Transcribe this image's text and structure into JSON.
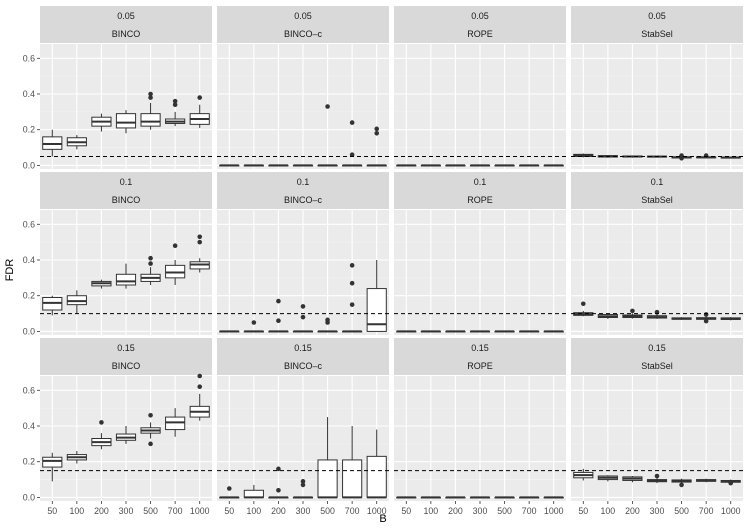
{
  "chart_data": {
    "type": "boxplot",
    "xlabel": "B",
    "ylabel": "FDR",
    "x_ticks": [
      "50",
      "100",
      "200",
      "300",
      "500",
      "700",
      "1000"
    ],
    "y_ticks": [
      "0.0",
      "0.2",
      "0.4",
      "0.6"
    ],
    "ylim": [
      -0.02,
      0.68
    ],
    "columns": [
      "BINCO",
      "BINCO–c",
      "ROPE",
      "StabSel"
    ],
    "rows": [
      {
        "threshold_label": "0.05",
        "threshold": 0.05,
        "panels": [
          {
            "method": "BINCO",
            "boxes": [
              {
                "lo": 0.05,
                "q1": 0.09,
                "med": 0.12,
                "q3": 0.16,
                "hi": 0.2,
                "out": []
              },
              {
                "lo": 0.09,
                "q1": 0.11,
                "med": 0.13,
                "q3": 0.155,
                "hi": 0.17,
                "out": []
              },
              {
                "lo": 0.19,
                "q1": 0.22,
                "med": 0.245,
                "q3": 0.27,
                "hi": 0.29,
                "out": []
              },
              {
                "lo": 0.18,
                "q1": 0.21,
                "med": 0.24,
                "q3": 0.29,
                "hi": 0.31,
                "out": []
              },
              {
                "lo": 0.2,
                "q1": 0.22,
                "med": 0.245,
                "q3": 0.29,
                "hi": 0.35,
                "out": [
                  0.38,
                  0.4
                ]
              },
              {
                "lo": 0.22,
                "q1": 0.235,
                "med": 0.245,
                "q3": 0.26,
                "hi": 0.3,
                "out": [
                  0.34,
                  0.36
                ]
              },
              {
                "lo": 0.21,
                "q1": 0.23,
                "med": 0.26,
                "q3": 0.29,
                "hi": 0.34,
                "out": [
                  0.38
                ]
              }
            ]
          },
          {
            "method": "BINCO–c",
            "boxes": [
              {
                "lo": 0,
                "q1": 0,
                "med": 0,
                "q3": 0,
                "hi": 0,
                "out": []
              },
              {
                "lo": 0,
                "q1": 0,
                "med": 0,
                "q3": 0,
                "hi": 0,
                "out": []
              },
              {
                "lo": 0,
                "q1": 0,
                "med": 0,
                "q3": 0,
                "hi": 0,
                "out": []
              },
              {
                "lo": 0,
                "q1": 0,
                "med": 0,
                "q3": 0,
                "hi": 0,
                "out": []
              },
              {
                "lo": 0,
                "q1": 0,
                "med": 0,
                "q3": 0,
                "hi": 0,
                "out": [
                  0.33
                ]
              },
              {
                "lo": 0,
                "q1": 0,
                "med": 0,
                "q3": 0,
                "hi": 0,
                "out": [
                  0.06,
                  0.24
                ]
              },
              {
                "lo": 0,
                "q1": 0,
                "med": 0,
                "q3": 0,
                "hi": 0,
                "out": [
                  0.18,
                  0.205
                ]
              }
            ]
          },
          {
            "method": "ROPE",
            "boxes": [
              {
                "lo": 0,
                "q1": 0,
                "med": 0,
                "q3": 0,
                "hi": 0,
                "out": []
              },
              {
                "lo": 0,
                "q1": 0,
                "med": 0,
                "q3": 0,
                "hi": 0,
                "out": []
              },
              {
                "lo": 0,
                "q1": 0,
                "med": 0,
                "q3": 0,
                "hi": 0,
                "out": []
              },
              {
                "lo": 0,
                "q1": 0,
                "med": 0,
                "q3": 0,
                "hi": 0,
                "out": []
              },
              {
                "lo": 0,
                "q1": 0,
                "med": 0,
                "q3": 0,
                "hi": 0,
                "out": []
              },
              {
                "lo": 0,
                "q1": 0,
                "med": 0,
                "q3": 0,
                "hi": 0,
                "out": []
              },
              {
                "lo": 0,
                "q1": 0,
                "med": 0,
                "q3": 0,
                "hi": 0,
                "out": []
              }
            ]
          },
          {
            "method": "StabSel",
            "boxes": [
              {
                "lo": 0.045,
                "q1": 0.05,
                "med": 0.057,
                "q3": 0.062,
                "hi": 0.067,
                "out": []
              },
              {
                "lo": 0.043,
                "q1": 0.047,
                "med": 0.051,
                "q3": 0.055,
                "hi": 0.058,
                "out": []
              },
              {
                "lo": 0.043,
                "q1": 0.047,
                "med": 0.05,
                "q3": 0.053,
                "hi": 0.056,
                "out": []
              },
              {
                "lo": 0.044,
                "q1": 0.047,
                "med": 0.049,
                "q3": 0.052,
                "hi": 0.054,
                "out": []
              },
              {
                "lo": 0.037,
                "q1": 0.042,
                "med": 0.045,
                "q3": 0.048,
                "hi": 0.052,
                "out": [
                  0.04,
                  0.055
                ]
              },
              {
                "lo": 0.04,
                "q1": 0.043,
                "med": 0.045,
                "q3": 0.048,
                "hi": 0.05,
                "out": [
                  0.055
                ]
              },
              {
                "lo": 0.04,
                "q1": 0.042,
                "med": 0.044,
                "q3": 0.047,
                "hi": 0.049,
                "out": []
              }
            ]
          }
        ]
      },
      {
        "threshold_label": "0.1",
        "threshold": 0.1,
        "panels": [
          {
            "method": "BINCO",
            "boxes": [
              {
                "lo": 0.09,
                "q1": 0.12,
                "med": 0.16,
                "q3": 0.19,
                "hi": 0.2,
                "out": []
              },
              {
                "lo": 0.1,
                "q1": 0.15,
                "med": 0.17,
                "q3": 0.2,
                "hi": 0.23,
                "out": []
              },
              {
                "lo": 0.24,
                "q1": 0.255,
                "med": 0.27,
                "q3": 0.28,
                "hi": 0.29,
                "out": []
              },
              {
                "lo": 0.24,
                "q1": 0.26,
                "med": 0.28,
                "q3": 0.32,
                "hi": 0.38,
                "out": []
              },
              {
                "lo": 0.26,
                "q1": 0.28,
                "med": 0.3,
                "q3": 0.32,
                "hi": 0.36,
                "out": [
                  0.38,
                  0.41
                ]
              },
              {
                "lo": 0.26,
                "q1": 0.3,
                "med": 0.33,
                "q3": 0.37,
                "hi": 0.4,
                "out": [
                  0.48
                ]
              },
              {
                "lo": 0.33,
                "q1": 0.35,
                "med": 0.375,
                "q3": 0.39,
                "hi": 0.41,
                "out": [
                  0.5,
                  0.53
                ]
              }
            ]
          },
          {
            "method": "BINCO–c",
            "boxes": [
              {
                "lo": 0,
                "q1": 0,
                "med": 0,
                "q3": 0,
                "hi": 0,
                "out": []
              },
              {
                "lo": 0,
                "q1": 0,
                "med": 0,
                "q3": 0,
                "hi": 0,
                "out": [
                  0.05
                ]
              },
              {
                "lo": 0,
                "q1": 0,
                "med": 0,
                "q3": 0,
                "hi": 0,
                "out": [
                  0.06,
                  0.17
                ]
              },
              {
                "lo": 0,
                "q1": 0,
                "med": 0,
                "q3": 0,
                "hi": 0,
                "out": [
                  0.08,
                  0.14
                ]
              },
              {
                "lo": 0,
                "q1": 0,
                "med": 0,
                "q3": 0,
                "hi": 0,
                "out": [
                  0.05,
                  0.065
                ]
              },
              {
                "lo": 0,
                "q1": 0,
                "med": 0,
                "q3": 0,
                "hi": 0,
                "out": [
                  0.15,
                  0.27,
                  0.37
                ]
              },
              {
                "lo": 0,
                "q1": 0.0,
                "med": 0.04,
                "q3": 0.24,
                "hi": 0.4,
                "out": []
              }
            ]
          },
          {
            "method": "ROPE",
            "boxes": [
              {
                "lo": 0,
                "q1": 0,
                "med": 0,
                "q3": 0,
                "hi": 0,
                "out": []
              },
              {
                "lo": 0,
                "q1": 0,
                "med": 0,
                "q3": 0,
                "hi": 0,
                "out": []
              },
              {
                "lo": 0,
                "q1": 0,
                "med": 0,
                "q3": 0,
                "hi": 0,
                "out": []
              },
              {
                "lo": 0,
                "q1": 0,
                "med": 0,
                "q3": 0,
                "hi": 0,
                "out": []
              },
              {
                "lo": 0,
                "q1": 0,
                "med": 0,
                "q3": 0,
                "hi": 0,
                "out": []
              },
              {
                "lo": 0,
                "q1": 0,
                "med": 0,
                "q3": 0,
                "hi": 0,
                "out": []
              },
              {
                "lo": 0,
                "q1": 0,
                "med": 0,
                "q3": 0,
                "hi": 0,
                "out": []
              }
            ]
          },
          {
            "method": "StabSel",
            "boxes": [
              {
                "lo": 0.085,
                "q1": 0.09,
                "med": 0.097,
                "q3": 0.105,
                "hi": 0.115,
                "out": [
                  0.155
                ]
              },
              {
                "lo": 0.07,
                "q1": 0.078,
                "med": 0.085,
                "q3": 0.095,
                "hi": 0.1,
                "out": []
              },
              {
                "lo": 0.072,
                "q1": 0.078,
                "med": 0.084,
                "q3": 0.092,
                "hi": 0.1,
                "out": [
                  0.115
                ]
              },
              {
                "lo": 0.07,
                "q1": 0.075,
                "med": 0.08,
                "q3": 0.088,
                "hi": 0.095,
                "out": [
                  0.108
                ]
              },
              {
                "lo": 0.065,
                "q1": 0.068,
                "med": 0.072,
                "q3": 0.076,
                "hi": 0.08,
                "out": []
              },
              {
                "lo": 0.065,
                "q1": 0.068,
                "med": 0.072,
                "q3": 0.077,
                "hi": 0.085,
                "out": [
                  0.058,
                  0.095
                ]
              },
              {
                "lo": 0.062,
                "q1": 0.067,
                "med": 0.071,
                "q3": 0.076,
                "hi": 0.08,
                "out": []
              }
            ]
          }
        ]
      },
      {
        "threshold_label": "0.15",
        "threshold": 0.15,
        "panels": [
          {
            "method": "BINCO",
            "boxes": [
              {
                "lo": 0.09,
                "q1": 0.17,
                "med": 0.205,
                "q3": 0.225,
                "hi": 0.25,
                "out": []
              },
              {
                "lo": 0.19,
                "q1": 0.21,
                "med": 0.225,
                "q3": 0.24,
                "hi": 0.26,
                "out": []
              },
              {
                "lo": 0.27,
                "q1": 0.29,
                "med": 0.31,
                "q3": 0.33,
                "hi": 0.36,
                "out": [
                  0.42
                ]
              },
              {
                "lo": 0.3,
                "q1": 0.32,
                "med": 0.335,
                "q3": 0.355,
                "hi": 0.4,
                "out": []
              },
              {
                "lo": 0.33,
                "q1": 0.36,
                "med": 0.375,
                "q3": 0.39,
                "hi": 0.42,
                "out": [
                  0.3,
                  0.46
                ]
              },
              {
                "lo": 0.34,
                "q1": 0.38,
                "med": 0.42,
                "q3": 0.45,
                "hi": 0.5,
                "out": []
              },
              {
                "lo": 0.43,
                "q1": 0.45,
                "med": 0.48,
                "q3": 0.51,
                "hi": 0.58,
                "out": [
                  0.62,
                  0.68
                ]
              }
            ]
          },
          {
            "method": "BINCO–c",
            "boxes": [
              {
                "lo": 0,
                "q1": 0,
                "med": 0,
                "q3": 0,
                "hi": 0,
                "out": [
                  0.05
                ]
              },
              {
                "lo": 0,
                "q1": 0.0,
                "med": 0.0,
                "q3": 0.04,
                "hi": 0.07,
                "out": []
              },
              {
                "lo": 0,
                "q1": 0,
                "med": 0,
                "q3": 0,
                "hi": 0,
                "out": [
                  0.04,
                  0.16
                ]
              },
              {
                "lo": 0,
                "q1": 0,
                "med": 0,
                "q3": 0,
                "hi": 0,
                "out": [
                  0.07,
                  0.09
                ]
              },
              {
                "lo": 0,
                "q1": 0.0,
                "med": 0.0,
                "q3": 0.21,
                "hi": 0.45,
                "out": []
              },
              {
                "lo": 0,
                "q1": 0.0,
                "med": 0.0,
                "q3": 0.21,
                "hi": 0.4,
                "out": []
              },
              {
                "lo": 0,
                "q1": 0.0,
                "med": 0.0,
                "q3": 0.23,
                "hi": 0.38,
                "out": []
              }
            ]
          },
          {
            "method": "ROPE",
            "boxes": [
              {
                "lo": 0,
                "q1": 0,
                "med": 0,
                "q3": 0,
                "hi": 0,
                "out": []
              },
              {
                "lo": 0,
                "q1": 0,
                "med": 0,
                "q3": 0,
                "hi": 0,
                "out": []
              },
              {
                "lo": 0,
                "q1": 0,
                "med": 0,
                "q3": 0,
                "hi": 0,
                "out": []
              },
              {
                "lo": 0,
                "q1": 0,
                "med": 0,
                "q3": 0,
                "hi": 0,
                "out": []
              },
              {
                "lo": 0,
                "q1": 0,
                "med": 0,
                "q3": 0,
                "hi": 0,
                "out": []
              },
              {
                "lo": 0,
                "q1": 0,
                "med": 0,
                "q3": 0,
                "hi": 0,
                "out": []
              },
              {
                "lo": 0,
                "q1": 0,
                "med": 0,
                "q3": 0,
                "hi": 0,
                "out": []
              }
            ]
          },
          {
            "method": "StabSel",
            "boxes": [
              {
                "lo": 0.095,
                "q1": 0.11,
                "med": 0.125,
                "q3": 0.14,
                "hi": 0.16,
                "out": []
              },
              {
                "lo": 0.09,
                "q1": 0.1,
                "med": 0.11,
                "q3": 0.12,
                "hi": 0.125,
                "out": []
              },
              {
                "lo": 0.085,
                "q1": 0.095,
                "med": 0.105,
                "q3": 0.115,
                "hi": 0.12,
                "out": []
              },
              {
                "lo": 0.08,
                "q1": 0.088,
                "med": 0.095,
                "q3": 0.1,
                "hi": 0.11,
                "out": [
                  0.12
                ]
              },
              {
                "lo": 0.08,
                "q1": 0.086,
                "med": 0.092,
                "q3": 0.098,
                "hi": 0.105,
                "out": [
                  0.07
                ]
              },
              {
                "lo": 0.085,
                "q1": 0.09,
                "med": 0.095,
                "q3": 0.1,
                "hi": 0.105,
                "out": []
              },
              {
                "lo": 0.08,
                "q1": 0.085,
                "med": 0.09,
                "q3": 0.095,
                "hi": 0.1,
                "out": [
                  0.08
                ]
              }
            ]
          }
        ]
      }
    ]
  }
}
